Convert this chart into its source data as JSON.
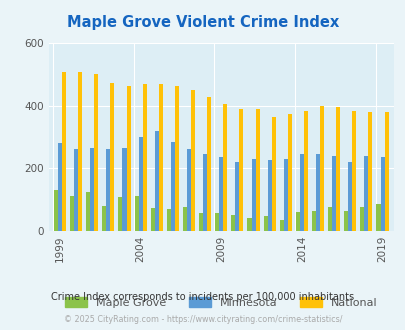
{
  "title": "Maple Grove Violent Crime Index",
  "subtitle": "Crime Index corresponds to incidents per 100,000 inhabitants",
  "copyright": "© 2025 CityRating.com - https://www.cityrating.com/crime-statistics/",
  "years": [
    1999,
    2000,
    2001,
    2002,
    2003,
    2004,
    2005,
    2006,
    2007,
    2008,
    2009,
    2010,
    2011,
    2012,
    2013,
    2014,
    2015,
    2016,
    2017,
    2018,
    2019
  ],
  "maple_grove": [
    130,
    113,
    125,
    80,
    107,
    112,
    72,
    70,
    78,
    58,
    58,
    50,
    42,
    47,
    35,
    60,
    65,
    75,
    63,
    78,
    85
  ],
  "minnesota": [
    280,
    260,
    265,
    260,
    265,
    300,
    320,
    285,
    260,
    245,
    235,
    220,
    230,
    225,
    230,
    245,
    245,
    240,
    220,
    238,
    235
  ],
  "national": [
    508,
    508,
    500,
    473,
    462,
    469,
    470,
    464,
    450,
    428,
    405,
    388,
    388,
    365,
    373,
    383,
    398,
    397,
    383,
    378,
    378
  ],
  "ylim": [
    0,
    600
  ],
  "yticks": [
    0,
    200,
    400,
    600
  ],
  "bar_width": 0.75,
  "color_maple": "#8bc34a",
  "color_minnesota": "#5b9bd5",
  "color_national": "#ffc107",
  "bg_color": "#eaf4f8",
  "plot_bg": "#ddeef5",
  "title_color": "#1565c0",
  "subtitle_color": "#333333",
  "copyright_color": "#aaaaaa",
  "tick_color": "#555555",
  "grid_color": "#ffffff",
  "xtick_years": [
    1999,
    2004,
    2009,
    2014,
    2019
  ]
}
